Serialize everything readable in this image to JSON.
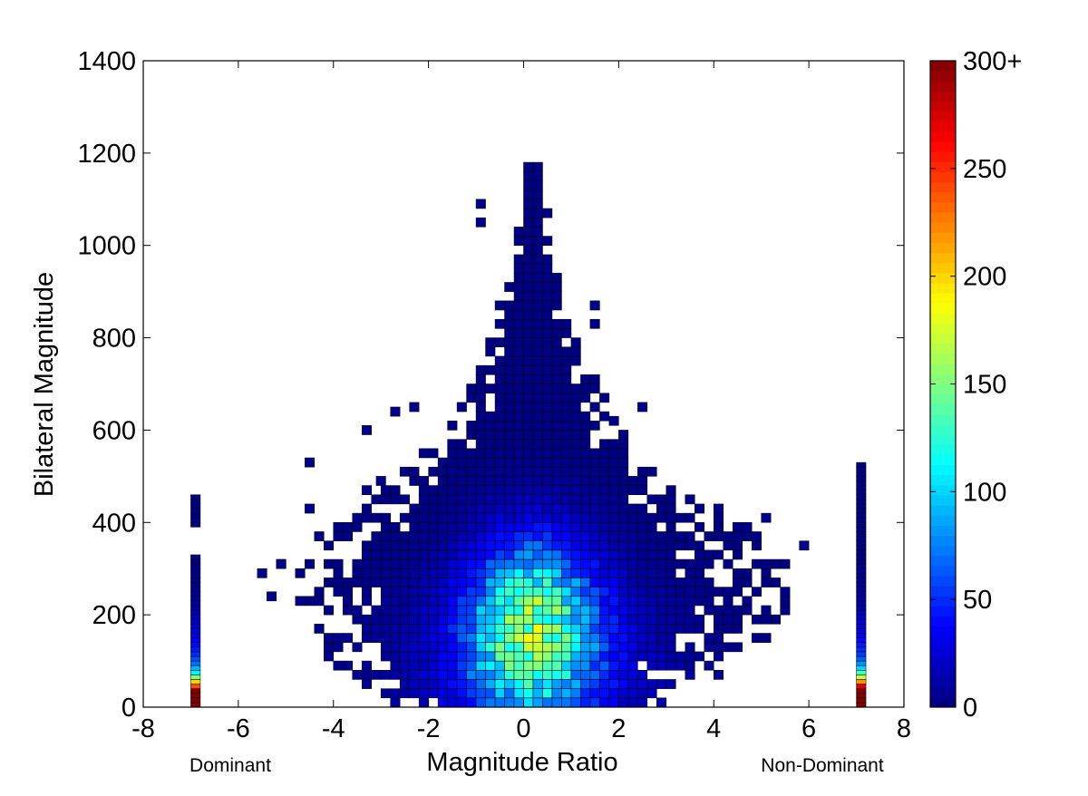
{
  "chart_data": {
    "type": "heatmap",
    "title": "",
    "xlabel": "Magnitude Ratio",
    "ylabel": "Bilateral Magnitude",
    "xlim": [
      -8,
      8
    ],
    "ylim": [
      0,
      1400
    ],
    "x_ticks": [
      "-8",
      "-6",
      "-4",
      "-2",
      "0",
      "2",
      "4",
      "6",
      "8"
    ],
    "y_ticks": [
      "0",
      "200",
      "400",
      "600",
      "800",
      "1000",
      "1200",
      "1400"
    ],
    "x_annotations": [
      {
        "text": "Dominant",
        "x": -6.9
      },
      {
        "text": "Non-Dominant",
        "x": 7.1
      }
    ],
    "colorbar": {
      "colormap": "jet",
      "range": [
        0,
        300
      ],
      "ticks": [
        "0",
        "50",
        "100",
        "150",
        "200",
        "250",
        "300+"
      ]
    },
    "bin_size": {
      "x": 0.2,
      "y": 20
    },
    "clusters": [
      {
        "center": [
          0.2,
          180
        ],
        "sigma": [
          0.9,
          130
        ],
        "peak": 120
      },
      {
        "center": [
          0.2,
          100
        ],
        "sigma": [
          1.5,
          130
        ],
        "peak": 35
      },
      {
        "center": [
          0.2,
          60
        ],
        "sigma": [
          2.5,
          170
        ],
        "peak": 10
      }
    ],
    "envelope": [
      {
        "y": 0,
        "halfwidth": 3.0
      },
      {
        "y": 100,
        "halfwidth": 4.2
      },
      {
        "y": 200,
        "halfwidth": 5.2
      },
      {
        "y": 300,
        "halfwidth": 5.2
      },
      {
        "y": 400,
        "halfwidth": 4.0
      },
      {
        "y": 500,
        "halfwidth": 2.8
      },
      {
        "y": 600,
        "halfwidth": 1.8
      },
      {
        "y": 800,
        "halfwidth": 0.9
      },
      {
        "y": 1000,
        "halfwidth": 0.4
      },
      {
        "y": 1180,
        "halfwidth": 0.15
      }
    ],
    "outliers": [
      [
        5.9,
        350
      ],
      [
        -4.5,
        530
      ],
      [
        -3.3,
        600
      ],
      [
        -4.5,
        430
      ],
      [
        4.1,
        430
      ],
      [
        5.1,
        410
      ],
      [
        -5.5,
        290
      ],
      [
        -1.5,
        510
      ],
      [
        -2.7,
        640
      ],
      [
        1.5,
        870
      ],
      [
        1.5,
        830
      ],
      [
        2.5,
        650
      ],
      [
        -3.0,
        490
      ],
      [
        -3.3,
        470
      ],
      [
        -0.9,
        1090
      ],
      [
        -0.9,
        1050
      ],
      [
        1.9,
        620
      ],
      [
        -5.1,
        310
      ],
      [
        -5.3,
        240
      ],
      [
        4.7,
        390
      ],
      [
        4.9,
        370
      ],
      [
        5.5,
        250
      ],
      [
        -2.3,
        650
      ],
      [
        -3.5,
        410
      ]
    ],
    "side_strips": [
      {
        "label": "Dominant",
        "x": -6.9,
        "values": [
          300,
          300,
          300,
          300,
          240,
          200,
          150,
          110,
          90,
          70,
          60,
          50,
          45,
          40,
          35,
          30,
          30,
          25,
          20,
          20,
          15,
          12,
          10,
          8,
          6,
          5,
          5,
          4,
          3,
          3,
          2,
          2,
          1,
          0,
          0,
          0,
          0,
          0,
          0,
          1,
          1,
          1,
          1,
          1,
          1,
          1,
          0,
          0,
          0
        ]
      },
      {
        "label": "Non-Dominant",
        "x": 7.1,
        "values": [
          300,
          300,
          300,
          300,
          270,
          220,
          170,
          130,
          100,
          80,
          65,
          55,
          50,
          45,
          40,
          35,
          30,
          28,
          25,
          22,
          18,
          14,
          12,
          10,
          8,
          7,
          6,
          5,
          4,
          3,
          3,
          2,
          2,
          2,
          1,
          1,
          1,
          1,
          1,
          1,
          1,
          1,
          1,
          1,
          1,
          1,
          1,
          1,
          1,
          1,
          1,
          1,
          1
        ]
      }
    ]
  }
}
